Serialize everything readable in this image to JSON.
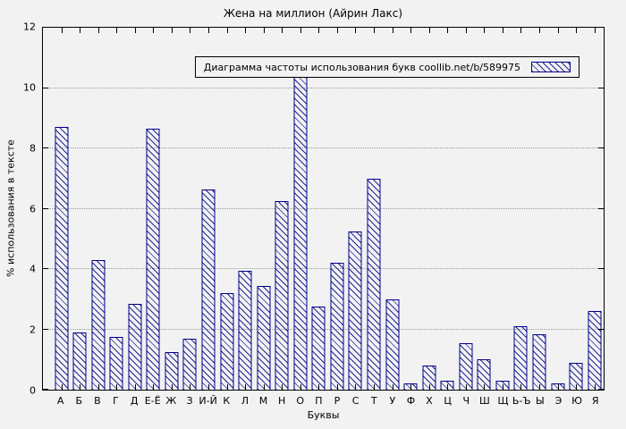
{
  "chart_data": {
    "type": "bar",
    "title": "Жена на миллион (Айрин Лакс)",
    "legend": "Диаграмма частоты использования букв coollib.net/b/589975",
    "legend_position": "top-right-inside",
    "xlabel": "Буквы",
    "ylabel": "% использования в тексте",
    "ylim": [
      0,
      12
    ],
    "ytick_step": 2,
    "grid": "horizontal-dotted",
    "bar_color": "#00008b",
    "bar_style": "hatched-diagonal",
    "background_color": "#f2f2f2",
    "categories": [
      "А",
      "Б",
      "В",
      "Г",
      "Д",
      "Е-Ё",
      "Ж",
      "З",
      "И-Й",
      "К",
      "Л",
      "М",
      "Н",
      "О",
      "П",
      "Р",
      "С",
      "Т",
      "У",
      "Ф",
      "Х",
      "Ц",
      "Ч",
      "Ш",
      "Щ",
      "Ь-Ъ",
      "Ы",
      "Э",
      "Ю",
      "Я"
    ],
    "values": [
      8.7,
      1.9,
      4.3,
      1.75,
      2.85,
      8.65,
      1.25,
      1.7,
      6.65,
      3.2,
      3.95,
      3.45,
      6.25,
      10.8,
      2.75,
      4.2,
      5.25,
      7.0,
      3.0,
      0.2,
      0.8,
      0.3,
      1.55,
      1.0,
      0.3,
      2.1,
      1.85,
      0.2,
      0.9,
      2.6
    ]
  }
}
